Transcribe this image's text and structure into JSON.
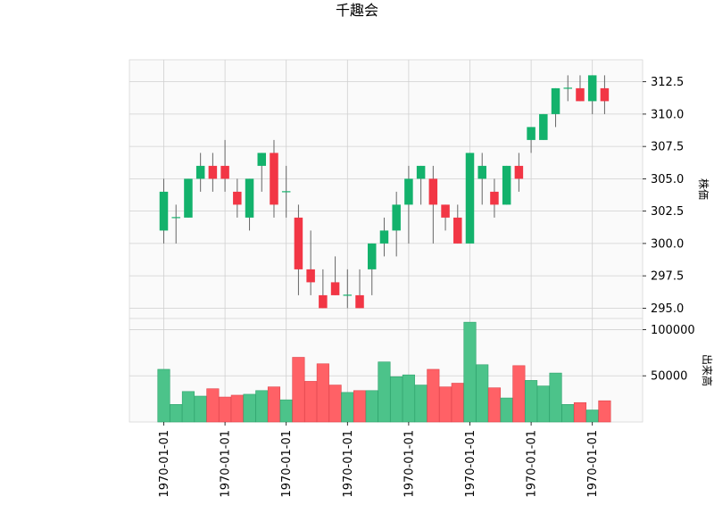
{
  "chart_data": {
    "type": "candlestick",
    "title": "千趣会",
    "price_axis_label": "株価",
    "volume_axis_label": "出来高",
    "price_ylim": [
      294.2,
      314.2
    ],
    "price_ticks": [
      "295.0",
      "297.5",
      "300.0",
      "302.5",
      "305.0",
      "307.5",
      "310.0",
      "312.5"
    ],
    "volume_ylim": [
      0,
      112000
    ],
    "volume_ticks": [
      "50000",
      "100000"
    ],
    "x_tick_labels": [
      "1970-01-01",
      "1970-01-01",
      "1970-01-01",
      "1970-01-01",
      "1970-01-01",
      "1970-01-01",
      "1970-01-01",
      "1970-01-01"
    ],
    "grid": true,
    "up_color": "#13b26c",
    "down_color": "#f23645",
    "candles": [
      {
        "open": 301,
        "high": 305,
        "low": 300,
        "close": 304,
        "volume": 57000
      },
      {
        "open": 302,
        "high": 303,
        "low": 300,
        "close": 302,
        "volume": 19000
      },
      {
        "open": 302,
        "high": 305,
        "low": 302,
        "close": 305,
        "volume": 33000
      },
      {
        "open": 305,
        "high": 307,
        "low": 304,
        "close": 306,
        "volume": 28000
      },
      {
        "open": 306,
        "high": 307,
        "low": 304,
        "close": 305,
        "volume": 36000
      },
      {
        "open": 306,
        "high": 308,
        "low": 304,
        "close": 305,
        "volume": 27000
      },
      {
        "open": 304,
        "high": 305,
        "low": 302,
        "close": 303,
        "volume": 29000
      },
      {
        "open": 302,
        "high": 305,
        "low": 301,
        "close": 305,
        "volume": 30000
      },
      {
        "open": 306,
        "high": 307,
        "low": 304,
        "close": 307,
        "volume": 34000
      },
      {
        "open": 307,
        "high": 308,
        "low": 302,
        "close": 303,
        "volume": 38000
      },
      {
        "open": 304,
        "high": 306,
        "low": 302,
        "close": 304,
        "volume": 24000
      },
      {
        "open": 302,
        "high": 303,
        "low": 296,
        "close": 298,
        "volume": 70000
      },
      {
        "open": 298,
        "high": 301,
        "low": 296,
        "close": 297,
        "volume": 44000
      },
      {
        "open": 296,
        "high": 298,
        "low": 295,
        "close": 295,
        "volume": 63000
      },
      {
        "open": 297,
        "high": 299,
        "low": 296,
        "close": 296,
        "volume": 40000
      },
      {
        "open": 296,
        "high": 298,
        "low": 295,
        "close": 296,
        "volume": 32000
      },
      {
        "open": 296,
        "high": 298,
        "low": 295,
        "close": 295,
        "volume": 34000
      },
      {
        "open": 298,
        "high": 300,
        "low": 296,
        "close": 300,
        "volume": 34000
      },
      {
        "open": 300,
        "high": 302,
        "low": 299,
        "close": 301,
        "volume": 65000
      },
      {
        "open": 301,
        "high": 304,
        "low": 299,
        "close": 303,
        "volume": 49000
      },
      {
        "open": 303,
        "high": 306,
        "low": 300,
        "close": 305,
        "volume": 51000
      },
      {
        "open": 305,
        "high": 306,
        "low": 303,
        "close": 306,
        "volume": 40000
      },
      {
        "open": 305,
        "high": 306,
        "low": 300,
        "close": 303,
        "volume": 57000
      },
      {
        "open": 303,
        "high": 303,
        "low": 301,
        "close": 302,
        "volume": 38000
      },
      {
        "open": 302,
        "high": 303,
        "low": 300,
        "close": 300,
        "volume": 42000
      },
      {
        "open": 300,
        "high": 307,
        "low": 300,
        "close": 307,
        "volume": 108000
      },
      {
        "open": 305,
        "high": 307,
        "low": 303,
        "close": 306,
        "volume": 62000
      },
      {
        "open": 304,
        "high": 305,
        "low": 302,
        "close": 303,
        "volume": 37000
      },
      {
        "open": 303,
        "high": 306,
        "low": 303,
        "close": 306,
        "volume": 26000
      },
      {
        "open": 306,
        "high": 307,
        "low": 304,
        "close": 305,
        "volume": 61000
      },
      {
        "open": 308,
        "high": 309,
        "low": 307,
        "close": 309,
        "volume": 45000
      },
      {
        "open": 308,
        "high": 310,
        "low": 308,
        "close": 310,
        "volume": 39000
      },
      {
        "open": 310,
        "high": 312,
        "low": 309,
        "close": 312,
        "volume": 53000
      },
      {
        "open": 312,
        "high": 313,
        "low": 311,
        "close": 312,
        "volume": 19000
      },
      {
        "open": 312,
        "high": 313,
        "low": 311,
        "close": 311,
        "volume": 21000
      },
      {
        "open": 311,
        "high": 313,
        "low": 310,
        "close": 313,
        "volume": 13000
      },
      {
        "open": 312,
        "high": 313,
        "low": 310,
        "close": 311,
        "volume": 23000
      }
    ]
  }
}
